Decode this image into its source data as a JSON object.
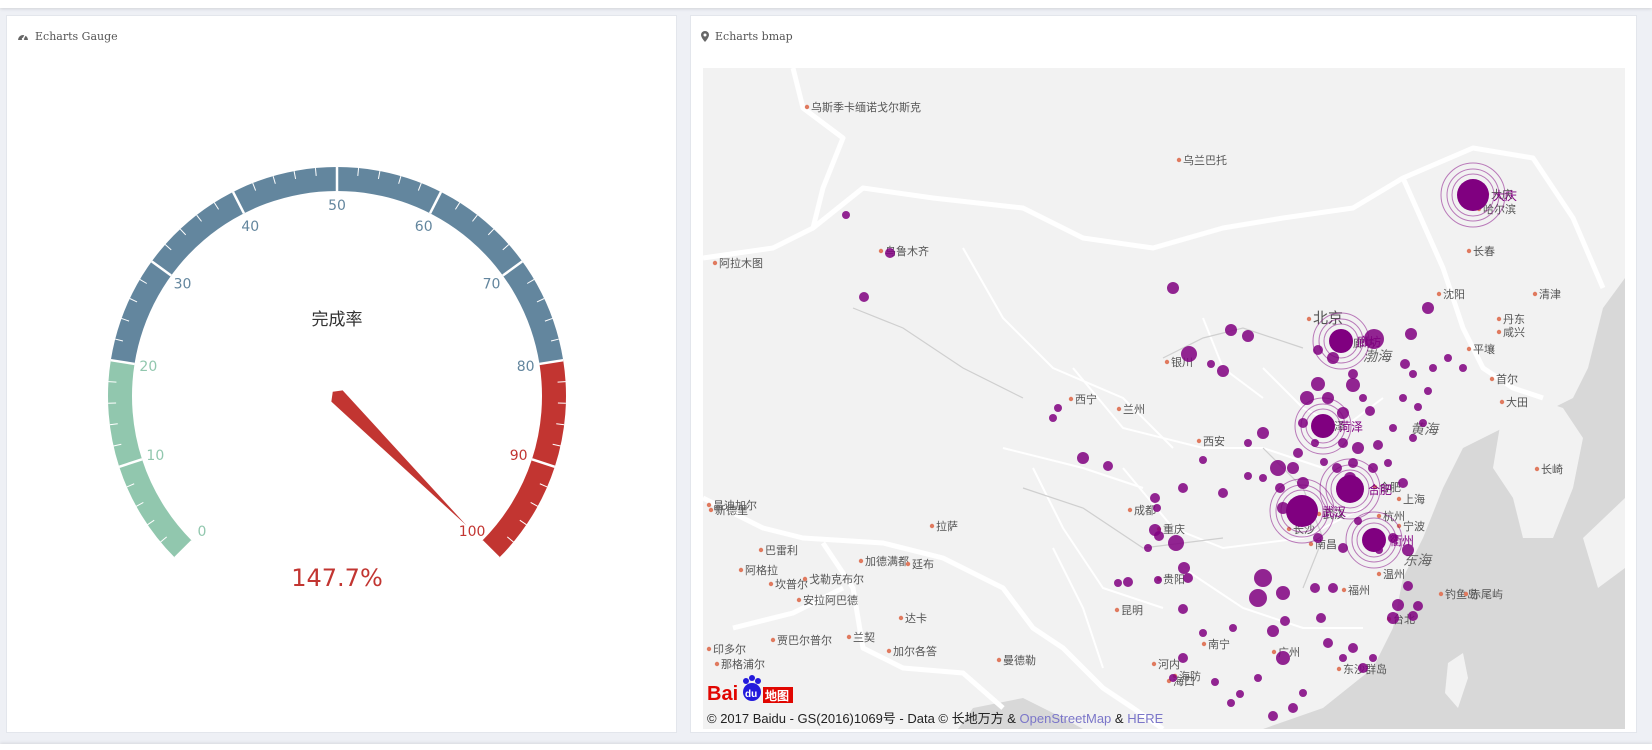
{
  "gauge_panel": {
    "title": "Echarts Gauge",
    "icon": "dashboard-icon",
    "gauge": {
      "name": "完成率",
      "value_text": "147.7%",
      "value": 147.7,
      "min": 0,
      "max": 100,
      "tick_labels": [
        "0",
        "10",
        "20",
        "30",
        "40",
        "50",
        "60",
        "70",
        "80",
        "90",
        "100"
      ],
      "color_bands": [
        {
          "to": 0.2,
          "color": "#91c7ae"
        },
        {
          "to": 0.8,
          "color": "#63869e"
        },
        {
          "to": 1.0,
          "color": "#c23531"
        }
      ],
      "detail_color": "#c23531",
      "pointer_color": "#c23531"
    }
  },
  "map_panel": {
    "title": "Echarts bmap",
    "icon": "map-marker-icon",
    "copyright": {
      "prefix": "© 2017 Baidu - GS(2016)1069号 - Data © 长地万方 & ",
      "osm": "OpenStreetMap",
      "amp": " & ",
      "here": "HERE"
    },
    "logo_text": "Bai du 地图",
    "point_color": "#800080",
    "place_labels": [
      "乌斯季卡缅诺戈尔斯克",
      "乌兰巴托",
      "大庆",
      "哈尔滨",
      "长春",
      "乌鲁木齐",
      "阿拉木图",
      "北京",
      "廊坊",
      "渤海",
      "沈阳",
      "丹东",
      "清津",
      "咸兴",
      "平壤",
      "首尔",
      "大田",
      "黄海",
      "西宁",
      "兰州",
      "银川",
      "西安",
      "菏泽",
      "合肥",
      "武汉",
      "上海",
      "杭州",
      "宁波",
      "温州",
      "南昌",
      "长沙",
      "成都",
      "重庆",
      "贵阳",
      "昆明",
      "南宁",
      "广州",
      "福州",
      "台北",
      "东海",
      "钓鱼岛",
      "赤尾屿",
      "长崎",
      "拉萨",
      "达卡",
      "加德满都",
      "廷布",
      "新德里",
      "巴雷利",
      "阿格拉",
      "坎普尔",
      "戈勒克布尔",
      "安拉阿巴德",
      "贾巴尔普尔",
      "兰契",
      "加尔各答",
      "曼德勒",
      "印多尔",
      "那格浦尔",
      "海口",
      "河内",
      "海防",
      "东沙群岛",
      "昌迪加尔"
    ],
    "effect_points": [
      "大庆",
      "廊坊",
      "菏泽",
      "合肥",
      "武汉",
      "衢州"
    ]
  }
}
